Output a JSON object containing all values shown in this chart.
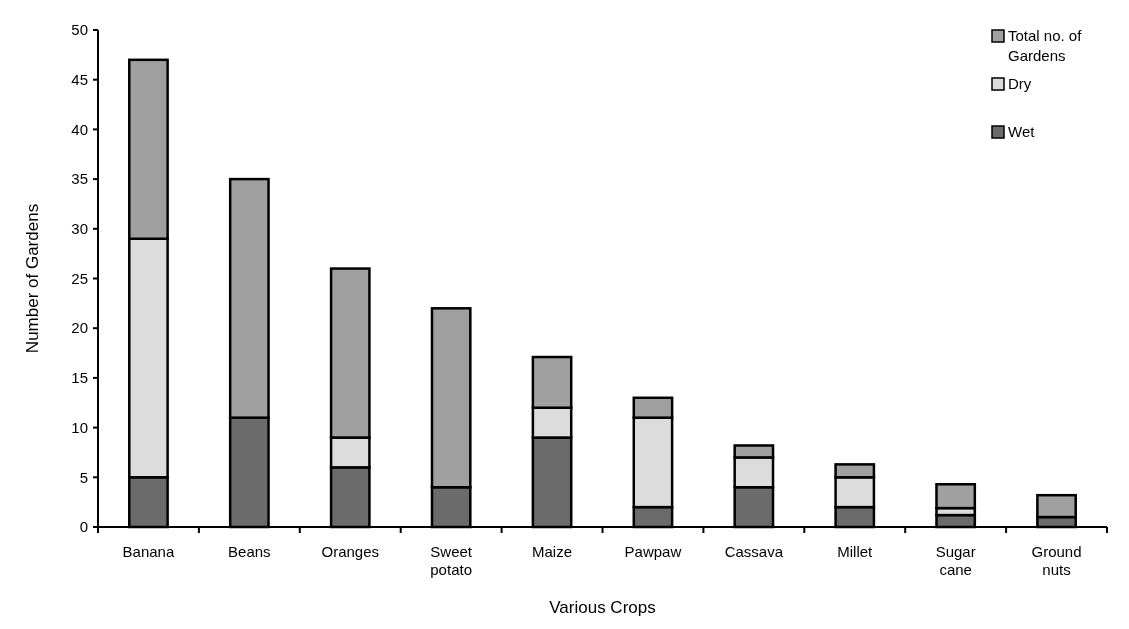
{
  "chart_data": {
    "type": "bar",
    "stacked": true,
    "xlabel": "Various Crops",
    "ylabel": "Number of Gardens",
    "categories": [
      "Banana",
      "Beans",
      "Oranges",
      "Sweet potato",
      "Maize",
      "Pawpaw",
      "Cassava",
      "Millet",
      "Sugar cane",
      "Ground nuts"
    ],
    "series": [
      {
        "name": "Wet",
        "color": "#6b6b6b",
        "values": [
          5,
          11,
          6,
          4,
          9,
          2,
          4,
          2,
          1.2,
          1
        ]
      },
      {
        "name": "Dry",
        "color": "#dcdcdc",
        "values": [
          24,
          0,
          3,
          0,
          3,
          9,
          3,
          3,
          0.7,
          0
        ]
      },
      {
        "name": "Total no. of Gardens",
        "color": "#a0a0a0",
        "values": [
          18,
          24,
          17,
          18,
          5.1,
          2,
          1.2,
          1.3,
          2.4,
          2.2
        ]
      }
    ],
    "ylim": [
      0,
      50
    ],
    "yticks": [
      0,
      5,
      10,
      15,
      20,
      25,
      30,
      35,
      40,
      45,
      50
    ],
    "grid": false,
    "legend": "top right"
  }
}
